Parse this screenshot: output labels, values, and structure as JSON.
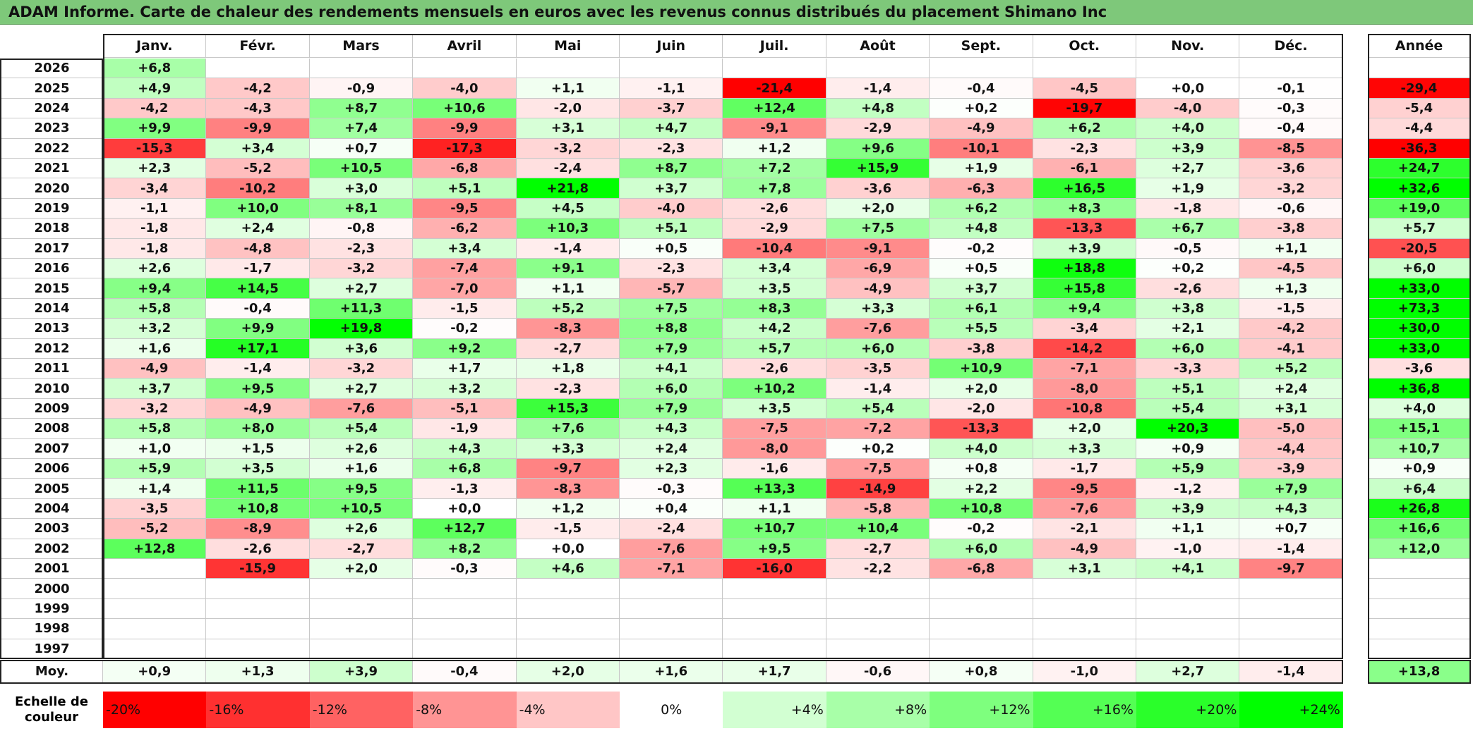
{
  "title": "ADAM Informe. Carte de chaleur des rendements mensuels en euros avec les revenus connus distribués du placement Shimano Inc",
  "chart_data": {
    "type": "heatmap",
    "title": "ADAM Informe. Carte de chaleur des rendements mensuels en euros avec les revenus connus distribués du placement Shimano Inc",
    "months": [
      "Janv.",
      "Févr.",
      "Mars",
      "Avril",
      "Mai",
      "Juin",
      "Juil.",
      "Août",
      "Sept.",
      "Oct.",
      "Nov.",
      "Déc."
    ],
    "year_header": "Année",
    "rows": [
      {
        "year": "2026",
        "values": [
          "+6,8",
          "",
          "",
          "",
          "",
          "",
          "",
          "",
          "",
          "",
          "",
          ""
        ],
        "annual": ""
      },
      {
        "year": "2025",
        "values": [
          "+4,9",
          "-4,2",
          "-0,9",
          "-4,0",
          "+1,1",
          "-1,1",
          "-21,4",
          "-1,4",
          "-0,4",
          "-4,5",
          "+0,0",
          "-0,1"
        ],
        "annual": "-29,4"
      },
      {
        "year": "2024",
        "values": [
          "-4,2",
          "-4,3",
          "+8,7",
          "+10,6",
          "-2,0",
          "-3,7",
          "+12,4",
          "+4,8",
          "+0,2",
          "-19,7",
          "-4,0",
          "-0,3"
        ],
        "annual": "-5,4"
      },
      {
        "year": "2023",
        "values": [
          "+9,9",
          "-9,9",
          "+7,4",
          "-9,9",
          "+3,1",
          "+4,7",
          "-9,1",
          "-2,9",
          "-4,9",
          "+6,2",
          "+4,0",
          "-0,4"
        ],
        "annual": "-4,4"
      },
      {
        "year": "2022",
        "values": [
          "-15,3",
          "+3,4",
          "+0,7",
          "-17,3",
          "-3,2",
          "-2,3",
          "+1,2",
          "+9,6",
          "-10,1",
          "-2,3",
          "+3,9",
          "-8,5"
        ],
        "annual": "-36,3"
      },
      {
        "year": "2021",
        "values": [
          "+2,3",
          "-5,2",
          "+10,5",
          "-6,8",
          "-2,4",
          "+8,7",
          "+7,2",
          "+15,9",
          "+1,9",
          "-6,1",
          "+2,7",
          "-3,6"
        ],
        "annual": "+24,7"
      },
      {
        "year": "2020",
        "values": [
          "-3,4",
          "-10,2",
          "+3,0",
          "+5,1",
          "+21,8",
          "+3,7",
          "+7,8",
          "-3,6",
          "-6,3",
          "+16,5",
          "+1,9",
          "-3,2"
        ],
        "annual": "+32,6"
      },
      {
        "year": "2019",
        "values": [
          "-1,1",
          "+10,0",
          "+8,1",
          "-9,5",
          "+4,5",
          "-4,0",
          "-2,6",
          "+2,0",
          "+6,2",
          "+8,3",
          "-1,8",
          "-0,6"
        ],
        "annual": "+19,0"
      },
      {
        "year": "2018",
        "values": [
          "-1,8",
          "+2,4",
          "-0,8",
          "-6,2",
          "+10,3",
          "+5,1",
          "-2,9",
          "+7,5",
          "+4,8",
          "-13,3",
          "+6,7",
          "-3,8"
        ],
        "annual": "+5,7"
      },
      {
        "year": "2017",
        "values": [
          "-1,8",
          "-4,8",
          "-2,3",
          "+3,4",
          "-1,4",
          "+0,5",
          "-10,4",
          "-9,1",
          "-0,2",
          "+3,9",
          "-0,5",
          "+1,1"
        ],
        "annual": "-20,5"
      },
      {
        "year": "2016",
        "values": [
          "+2,6",
          "-1,7",
          "-3,2",
          "-7,4",
          "+9,1",
          "-2,3",
          "+3,4",
          "-6,9",
          "+0,5",
          "+18,8",
          "+0,2",
          "-4,5"
        ],
        "annual": "+6,0"
      },
      {
        "year": "2015",
        "values": [
          "+9,4",
          "+14,5",
          "+2,7",
          "-7,0",
          "+1,1",
          "-5,7",
          "+3,5",
          "-4,9",
          "+3,7",
          "+15,8",
          "-2,6",
          "+1,3"
        ],
        "annual": "+33,0"
      },
      {
        "year": "2014",
        "values": [
          "+5,8",
          "-0,4",
          "+11,3",
          "-1,5",
          "+5,2",
          "+7,5",
          "+8,3",
          "+3,3",
          "+6,1",
          "+9,4",
          "+3,8",
          "-1,5"
        ],
        "annual": "+73,3"
      },
      {
        "year": "2013",
        "values": [
          "+3,2",
          "+9,9",
          "+19,8",
          "-0,2",
          "-8,3",
          "+8,8",
          "+4,2",
          "-7,6",
          "+5,5",
          "-3,4",
          "+2,1",
          "-4,2"
        ],
        "annual": "+30,0"
      },
      {
        "year": "2012",
        "values": [
          "+1,6",
          "+17,1",
          "+3,6",
          "+9,2",
          "-2,7",
          "+7,9",
          "+5,7",
          "+6,0",
          "-3,8",
          "-14,2",
          "+6,0",
          "-4,1"
        ],
        "annual": "+33,0"
      },
      {
        "year": "2011",
        "values": [
          "-4,9",
          "-1,4",
          "-3,2",
          "+1,7",
          "+1,8",
          "+4,1",
          "-2,6",
          "-3,5",
          "+10,9",
          "-7,1",
          "-3,3",
          "+5,2"
        ],
        "annual": "-3,6"
      },
      {
        "year": "2010",
        "values": [
          "+3,7",
          "+9,5",
          "+2,7",
          "+3,2",
          "-2,3",
          "+6,0",
          "+10,2",
          "-1,4",
          "+2,0",
          "-8,0",
          "+5,1",
          "+2,4"
        ],
        "annual": "+36,8"
      },
      {
        "year": "2009",
        "values": [
          "-3,2",
          "-4,9",
          "-7,6",
          "-5,1",
          "+15,3",
          "+7,9",
          "+3,5",
          "+5,4",
          "-2,0",
          "-10,8",
          "+5,4",
          "+3,1"
        ],
        "annual": "+4,0"
      },
      {
        "year": "2008",
        "values": [
          "+5,8",
          "+8,0",
          "+5,4",
          "-1,9",
          "+7,6",
          "+4,3",
          "-7,5",
          "-7,2",
          "-13,3",
          "+2,0",
          "+20,3",
          "-5,0"
        ],
        "annual": "+15,1"
      },
      {
        "year": "2007",
        "values": [
          "+1,0",
          "+1,5",
          "+2,6",
          "+4,3",
          "+3,3",
          "+2,4",
          "-8,0",
          "+0,2",
          "+4,0",
          "+3,3",
          "+0,9",
          "-4,4"
        ],
        "annual": "+10,7"
      },
      {
        "year": "2006",
        "values": [
          "+5,9",
          "+3,5",
          "+1,6",
          "+6,8",
          "-9,7",
          "+2,3",
          "-1,6",
          "-7,5",
          "+0,8",
          "-1,7",
          "+5,9",
          "-3,9"
        ],
        "annual": "+0,9"
      },
      {
        "year": "2005",
        "values": [
          "+1,4",
          "+11,5",
          "+9,5",
          "-1,3",
          "-8,3",
          "-0,3",
          "+13,3",
          "-14,9",
          "+2,2",
          "-9,5",
          "-1,2",
          "+7,9"
        ],
        "annual": "+6,4"
      },
      {
        "year": "2004",
        "values": [
          "-3,5",
          "+10,8",
          "+10,5",
          "+0,0",
          "+1,2",
          "+0,4",
          "+1,1",
          "-5,8",
          "+10,8",
          "-7,6",
          "+3,9",
          "+4,3"
        ],
        "annual": "+26,8"
      },
      {
        "year": "2003",
        "values": [
          "-5,2",
          "-8,9",
          "+2,6",
          "+12,7",
          "-1,5",
          "-2,4",
          "+10,7",
          "+10,4",
          "-0,2",
          "-2,1",
          "+1,1",
          "+0,7"
        ],
        "annual": "+16,6"
      },
      {
        "year": "2002",
        "values": [
          "+12,8",
          "-2,6",
          "-2,7",
          "+8,2",
          "+0,0",
          "-7,6",
          "+9,5",
          "-2,7",
          "+6,0",
          "-4,9",
          "-1,0",
          "-1,4"
        ],
        "annual": "+12,0"
      },
      {
        "year": "2001",
        "values": [
          "",
          "-15,9",
          "+2,0",
          "-0,3",
          "+4,6",
          "-7,1",
          "-16,0",
          "-2,2",
          "-6,8",
          "+3,1",
          "+4,1",
          "-9,7"
        ],
        "annual": ""
      },
      {
        "year": "2000",
        "values": [
          "",
          "",
          "",
          "",
          "",
          "",
          "",
          "",
          "",
          "",
          "",
          ""
        ],
        "annual": ""
      },
      {
        "year": "1999",
        "values": [
          "",
          "",
          "",
          "",
          "",
          "",
          "",
          "",
          "",
          "",
          "",
          ""
        ],
        "annual": ""
      },
      {
        "year": "1998",
        "values": [
          "",
          "",
          "",
          "",
          "",
          "",
          "",
          "",
          "",
          "",
          "",
          ""
        ],
        "annual": ""
      },
      {
        "year": "1997",
        "values": [
          "",
          "",
          "",
          "",
          "",
          "",
          "",
          "",
          "",
          "",
          "",
          ""
        ],
        "annual": ""
      }
    ],
    "average": {
      "label": "Moy.",
      "values": [
        "+0,9",
        "+1,3",
        "+3,9",
        "-0,4",
        "+2,0",
        "+1,6",
        "+1,7",
        "-0,6",
        "+0,8",
        "-1,0",
        "+2,7",
        "-1,4"
      ],
      "annual": "+13,8"
    },
    "color_scale": {
      "label": "Echelle de couleur",
      "stops": [
        {
          "label": "-20%",
          "value": -20,
          "color": "#ff0000"
        },
        {
          "label": "-16%",
          "value": -16,
          "color": "#ff3030"
        },
        {
          "label": "-12%",
          "value": -12,
          "color": "#ff6262"
        },
        {
          "label": "-8%",
          "value": -8,
          "color": "#ff9494"
        },
        {
          "label": "-4%",
          "value": -4,
          "color": "#ffc6c6"
        },
        {
          "label": "0%",
          "value": 0,
          "color": "#ffffff"
        },
        {
          "label": "+4%",
          "value": 4,
          "color": "#d2ffd2"
        },
        {
          "label": "+8%",
          "value": 8,
          "color": "#a8ffa8"
        },
        {
          "label": "+12%",
          "value": 12,
          "color": "#7eff7e"
        },
        {
          "label": "+16%",
          "value": 16,
          "color": "#54ff54"
        },
        {
          "label": "+20%",
          "value": 20,
          "color": "#2aff2a"
        },
        {
          "label": "+24%",
          "value": 24,
          "color": "#00ff00"
        }
      ]
    }
  }
}
